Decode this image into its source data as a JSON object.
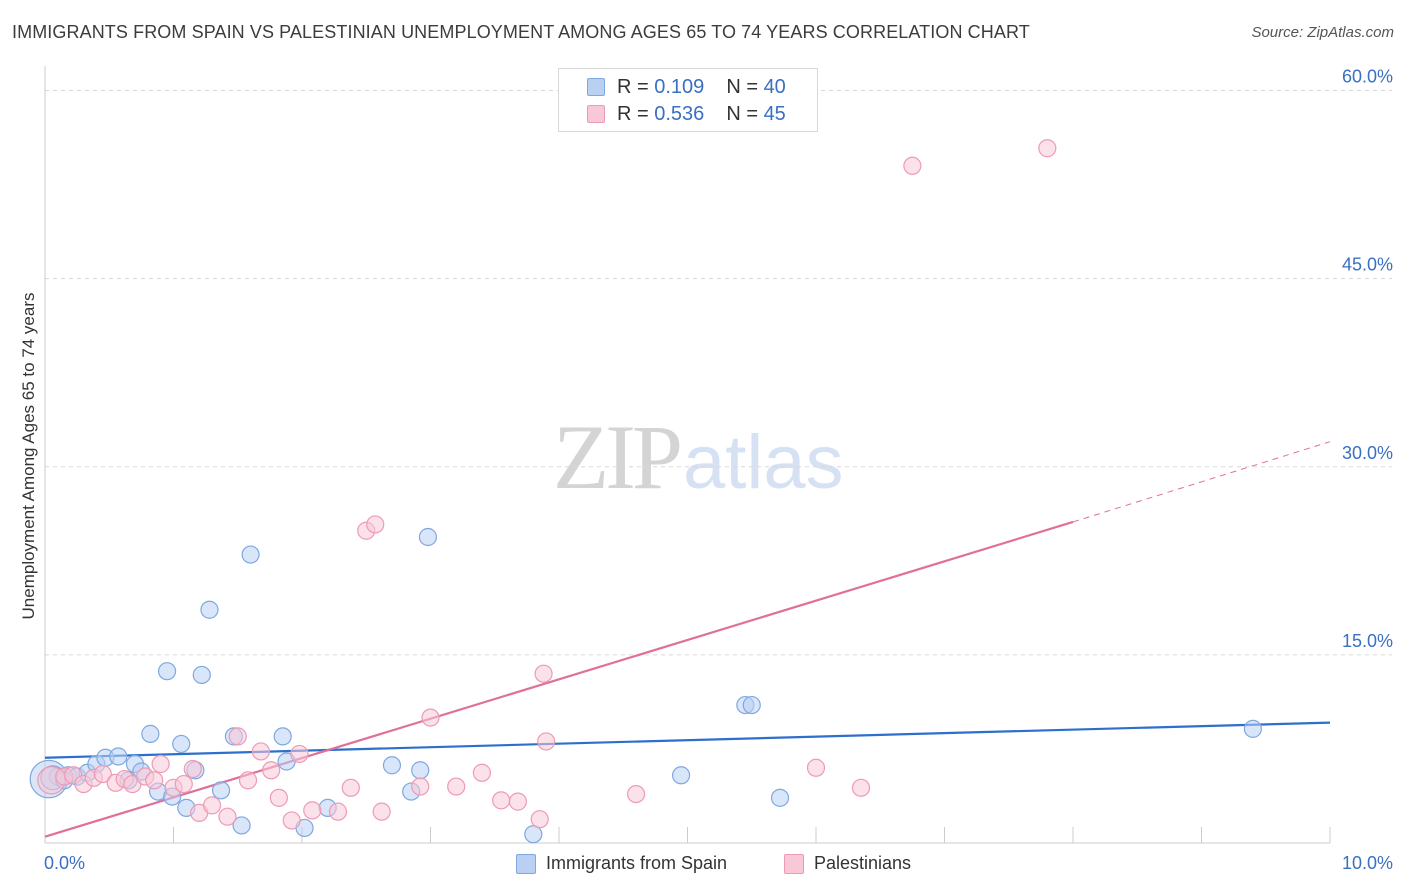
{
  "title": "IMMIGRANTS FROM SPAIN VS PALESTINIAN UNEMPLOYMENT AMONG AGES 65 TO 74 YEARS CORRELATION CHART",
  "source": "Source: ZipAtlas.com",
  "watermark": {
    "zip": "ZIP",
    "atlas": "atlas"
  },
  "legend_top": {
    "r_label": "R =",
    "n_label": "N =",
    "series1": {
      "r": "0.109",
      "n": "40"
    },
    "series2": {
      "r": "0.536",
      "n": "45"
    }
  },
  "colors": {
    "blue_fill": "#b9d0f2",
    "blue_stroke": "#7fa8e0",
    "blue_line": "#2d6fcc",
    "pink_fill": "#f8c8d7",
    "pink_stroke": "#ee9ab6",
    "pink_line": "#e0709a",
    "tick_text": "#3a6fc4",
    "grid": "#d8d8d8"
  },
  "chart_data": {
    "type": "scatter",
    "title": "IMMIGRANTS FROM SPAIN VS PALESTINIAN UNEMPLOYMENT AMONG AGES 65 TO 74 YEARS CORRELATION CHART",
    "xlabel": "",
    "ylabel": "Unemployment Among Ages 65 to 74 years",
    "xlim": [
      0,
      10
    ],
    "ylim": [
      0,
      61
    ],
    "x_tick_labels": [
      {
        "v": 0,
        "label": "0.0%"
      },
      {
        "v": 10,
        "label": "10.0%"
      }
    ],
    "y_tick_labels": [
      {
        "v": 15,
        "label": "15.0%"
      },
      {
        "v": 30,
        "label": "30.0%"
      },
      {
        "v": 45,
        "label": "45.0%"
      },
      {
        "v": 60,
        "label": "60.0%"
      }
    ],
    "x_minor_ticks": [
      1,
      2,
      3,
      4,
      5,
      6,
      7,
      8,
      9,
      10
    ],
    "series": [
      {
        "name": "Immigrants from Spain",
        "r": 0.109,
        "n": 40,
        "trend": {
          "x0": 0,
          "y0": 6.8,
          "x1": 10,
          "y1": 9.6
        },
        "points": [
          [
            0.03,
            5.1,
            2.2
          ],
          [
            0.1,
            5.3,
            1
          ],
          [
            0.18,
            5.4,
            1
          ],
          [
            0.25,
            5.3,
            1
          ],
          [
            0.33,
            5.6,
            1
          ],
          [
            0.4,
            6.3,
            1
          ],
          [
            0.47,
            6.8,
            1
          ],
          [
            0.57,
            6.9,
            1
          ],
          [
            0.65,
            5.0,
            1
          ],
          [
            0.7,
            6.3,
            1
          ],
          [
            0.75,
            5.7,
            1
          ],
          [
            0.82,
            8.7,
            1
          ],
          [
            0.88,
            4.1,
            1
          ],
          [
            0.95,
            13.7,
            1
          ],
          [
            0.99,
            3.7,
            1
          ],
          [
            1.06,
            7.9,
            1
          ],
          [
            1.1,
            2.8,
            1
          ],
          [
            1.17,
            5.8,
            1
          ],
          [
            1.22,
            13.4,
            1
          ],
          [
            1.28,
            18.6,
            1
          ],
          [
            1.37,
            4.2,
            1
          ],
          [
            1.47,
            8.5,
            1
          ],
          [
            1.53,
            1.4,
            1
          ],
          [
            1.6,
            23.0,
            1
          ],
          [
            1.85,
            8.5,
            1
          ],
          [
            1.88,
            6.5,
            1
          ],
          [
            2.02,
            1.2,
            1
          ],
          [
            2.2,
            2.8,
            1
          ],
          [
            2.7,
            6.2,
            1
          ],
          [
            2.85,
            4.1,
            1
          ],
          [
            2.92,
            5.8,
            1
          ],
          [
            2.98,
            24.4,
            1
          ],
          [
            3.8,
            0.7,
            1
          ],
          [
            4.95,
            5.4,
            1
          ],
          [
            5.45,
            11.0,
            1
          ],
          [
            5.5,
            11.0,
            1
          ],
          [
            5.72,
            3.6,
            1
          ],
          [
            9.4,
            9.1,
            1
          ],
          [
            0.06,
            5.2,
            1.4
          ],
          [
            0.15,
            5.0,
            1
          ]
        ]
      },
      {
        "name": "Palestinians",
        "r": 0.536,
        "n": 45,
        "trend": {
          "x0": 0,
          "y0": 0.5,
          "x1": 8,
          "y1": 25.6
        },
        "trend_dashed": {
          "x0": 8,
          "y0": 25.6,
          "x1": 10,
          "y1": 32.0
        },
        "points": [
          [
            0.05,
            5.0,
            1.6
          ],
          [
            0.15,
            5.3,
            1
          ],
          [
            0.22,
            5.4,
            1
          ],
          [
            0.3,
            4.7,
            1
          ],
          [
            0.38,
            5.2,
            1
          ],
          [
            0.45,
            5.5,
            1
          ],
          [
            0.55,
            4.8,
            1
          ],
          [
            0.62,
            5.1,
            1
          ],
          [
            0.68,
            4.7,
            1
          ],
          [
            0.78,
            5.3,
            1
          ],
          [
            0.85,
            5.0,
            1
          ],
          [
            0.9,
            6.3,
            1
          ],
          [
            1.0,
            4.4,
            1
          ],
          [
            1.08,
            4.7,
            1
          ],
          [
            1.15,
            5.9,
            1
          ],
          [
            1.2,
            2.4,
            1
          ],
          [
            1.3,
            3.0,
            1
          ],
          [
            1.42,
            2.1,
            1
          ],
          [
            1.5,
            8.5,
            1
          ],
          [
            1.58,
            5.0,
            1
          ],
          [
            1.68,
            7.3,
            1
          ],
          [
            1.76,
            5.8,
            1
          ],
          [
            1.82,
            3.6,
            1
          ],
          [
            1.92,
            1.8,
            1
          ],
          [
            1.98,
            7.1,
            1
          ],
          [
            2.08,
            2.6,
            1
          ],
          [
            2.28,
            2.5,
            1
          ],
          [
            2.38,
            4.4,
            1
          ],
          [
            2.5,
            24.9,
            1
          ],
          [
            2.57,
            25.4,
            1
          ],
          [
            2.62,
            2.5,
            1
          ],
          [
            2.92,
            4.5,
            1
          ],
          [
            3.0,
            10.0,
            1
          ],
          [
            3.2,
            4.5,
            1
          ],
          [
            3.4,
            5.6,
            1
          ],
          [
            3.55,
            3.4,
            1
          ],
          [
            3.68,
            3.3,
            1
          ],
          [
            3.85,
            1.9,
            1
          ],
          [
            3.88,
            13.5,
            1
          ],
          [
            3.9,
            8.1,
            1
          ],
          [
            4.6,
            3.9,
            1
          ],
          [
            6.0,
            6.0,
            1
          ],
          [
            6.35,
            4.4,
            1
          ],
          [
            6.75,
            54.0,
            1
          ],
          [
            7.8,
            55.4,
            1
          ]
        ]
      }
    ]
  },
  "legend_bottom": {
    "series1": "Immigrants from Spain",
    "series2": "Palestinians"
  }
}
